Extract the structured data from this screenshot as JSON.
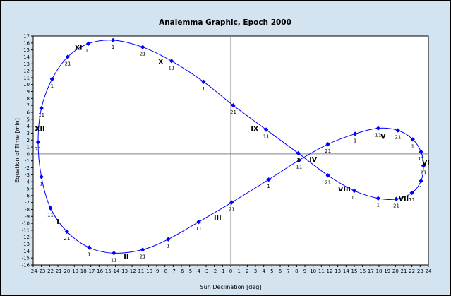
{
  "chart_data": {
    "type": "scatter",
    "title": "Analemma Graphic, Epoch 2000",
    "xlabel": "Sun Declination [deg]",
    "ylabel": "Equation of Time [min]",
    "xlim": [
      -24,
      24
    ],
    "ylim": [
      -16,
      17
    ],
    "x_ticks": [
      -24,
      -23,
      -22,
      -21,
      -20,
      -19,
      -18,
      -17,
      -16,
      -15,
      -14,
      -13,
      -12,
      -11,
      -10,
      -9,
      -8,
      -7,
      -6,
      -5,
      -4,
      -3,
      -2,
      -1,
      0,
      1,
      2,
      3,
      4,
      5,
      6,
      7,
      8,
      9,
      10,
      11,
      12,
      13,
      14,
      15,
      16,
      17,
      18,
      19,
      20,
      21,
      22,
      23,
      24
    ],
    "y_ticks": [
      -16,
      -15,
      -14,
      -13,
      -12,
      -11,
      -10,
      -9,
      -8,
      -7,
      -6,
      -5,
      -4,
      -3,
      -2,
      -1,
      0,
      1,
      2,
      3,
      4,
      5,
      6,
      7,
      8,
      9,
      10,
      11,
      12,
      13,
      14,
      15,
      16,
      17
    ],
    "colors": {
      "series": "#0000ff",
      "grid": "#808080",
      "plot_bg": "#ffffff",
      "frame_bg": "#d4e3f0"
    },
    "grid": "zero-lines-only",
    "series": [
      {
        "marker": "diamond",
        "points": [
          {
            "x": -23.0,
            "y": -3.3,
            "label": "1"
          },
          {
            "x": -21.9,
            "y": -7.8,
            "label": "11"
          },
          {
            "x": -19.9,
            "y": -11.2,
            "label": "21"
          },
          {
            "x": -17.2,
            "y": -13.5,
            "label": "1"
          },
          {
            "x": -14.2,
            "y": -14.3,
            "label": "11"
          },
          {
            "x": -10.7,
            "y": -13.8,
            "label": "21"
          },
          {
            "x": -7.6,
            "y": -12.3,
            "label": "1"
          },
          {
            "x": -3.9,
            "y": -9.8,
            "label": "11"
          },
          {
            "x": 0.1,
            "y": -7.0,
            "label": "21"
          },
          {
            "x": 4.6,
            "y": -3.7,
            "label": "1"
          },
          {
            "x": 8.3,
            "y": -0.9,
            "label": "11"
          },
          {
            "x": 11.8,
            "y": 1.4,
            "label": "21"
          },
          {
            "x": 15.1,
            "y": 2.9,
            "label": "1"
          },
          {
            "x": 17.9,
            "y": 3.7,
            "label": "11"
          },
          {
            "x": 20.3,
            "y": 3.4,
            "label": "21"
          },
          {
            "x": 22.1,
            "y": 2.1,
            "label": "1"
          },
          {
            "x": 23.1,
            "y": 0.3,
            "label": "11"
          },
          {
            "x": 23.4,
            "y": -1.7,
            "label": "21"
          },
          {
            "x": 23.1,
            "y": -3.9,
            "label": "1"
          },
          {
            "x": 22.0,
            "y": -5.6,
            "label": "11"
          },
          {
            "x": 20.1,
            "y": -6.5,
            "label": "21"
          },
          {
            "x": 17.9,
            "y": -6.4,
            "label": "1"
          },
          {
            "x": 15.0,
            "y": -5.3,
            "label": "11"
          },
          {
            "x": 11.8,
            "y": -3.1,
            "label": "21"
          },
          {
            "x": 8.2,
            "y": 0.1,
            "label": "1"
          },
          {
            "x": 4.3,
            "y": 3.5,
            "label": "11"
          },
          {
            "x": 0.3,
            "y": 7.0,
            "label": "21"
          },
          {
            "x": -3.3,
            "y": 10.4,
            "label": "1"
          },
          {
            "x": -7.2,
            "y": 13.4,
            "label": "11"
          },
          {
            "x": -10.7,
            "y": 15.4,
            "label": "21"
          },
          {
            "x": -14.3,
            "y": 16.4,
            "label": "1"
          },
          {
            "x": -17.3,
            "y": 15.9,
            "label": "11"
          },
          {
            "x": -19.8,
            "y": 14.0,
            "label": "21"
          },
          {
            "x": -21.7,
            "y": 10.8,
            "label": "1"
          },
          {
            "x": -23.0,
            "y": 6.6,
            "label": "11"
          },
          {
            "x": -23.4,
            "y": 1.7,
            "label": "21"
          }
        ]
      }
    ],
    "annotations": [
      {
        "text": "I",
        "x": -21.0,
        "y": -9.7
      },
      {
        "text": "II",
        "x": -12.7,
        "y": -14.7
      },
      {
        "text": "III",
        "x": -1.6,
        "y": -9.2
      },
      {
        "text": "IV",
        "x": 10.0,
        "y": -0.7
      },
      {
        "text": "V",
        "x": 18.5,
        "y": 2.6
      },
      {
        "text": "VI",
        "x": 23.7,
        "y": -1.2
      },
      {
        "text": "VII",
        "x": 21.0,
        "y": -6.4
      },
      {
        "text": "VIII",
        "x": 13.8,
        "y": -5.0
      },
      {
        "text": "IX",
        "x": 2.9,
        "y": 3.7
      },
      {
        "text": "X",
        "x": -8.5,
        "y": 13.4
      },
      {
        "text": "XI",
        "x": -18.5,
        "y": 15.4
      },
      {
        "text": "XII",
        "x": -23.2,
        "y": 3.7
      }
    ]
  }
}
